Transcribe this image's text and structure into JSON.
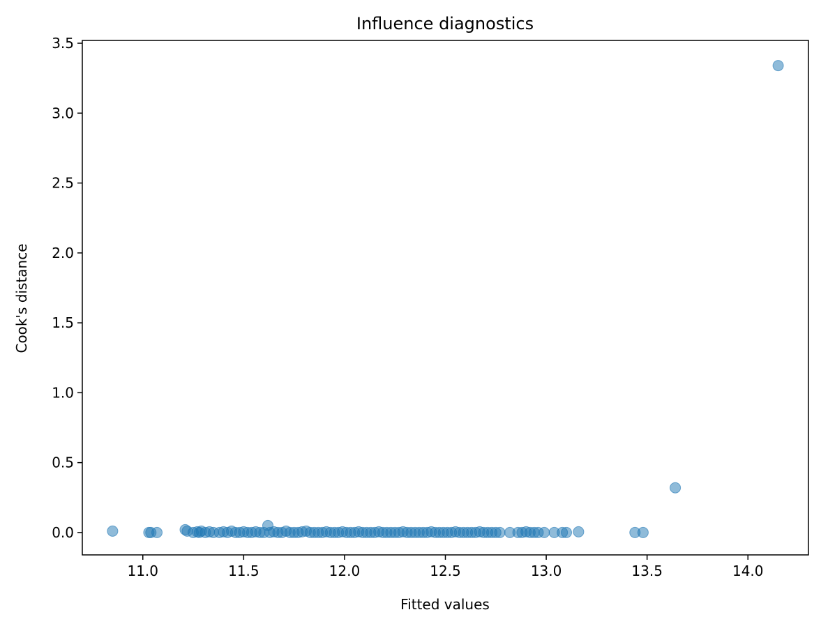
{
  "chart_data": {
    "type": "scatter",
    "title": "Influence diagnostics",
    "xlabel": "Fitted values",
    "ylabel": "Cook's distance",
    "xlim": [
      10.7,
      14.3
    ],
    "ylim": [
      -0.16,
      3.52
    ],
    "xticks": [
      11.0,
      11.5,
      12.0,
      12.5,
      13.0,
      13.5,
      14.0
    ],
    "xtick_labels": [
      "11.0",
      "11.5",
      "12.0",
      "12.5",
      "13.0",
      "13.5",
      "14.0"
    ],
    "yticks": [
      0.0,
      0.5,
      1.0,
      1.5,
      2.0,
      2.5,
      3.0,
      3.5
    ],
    "ytick_labels": [
      "0.0",
      "0.5",
      "1.0",
      "1.5",
      "2.0",
      "2.5",
      "3.0",
      "3.5"
    ],
    "grid": false,
    "marker_color": "#1f77b4",
    "marker_alpha": 0.5,
    "points": [
      [
        10.85,
        0.01
      ],
      [
        11.03,
        0.0
      ],
      [
        11.04,
        0.0
      ],
      [
        11.07,
        0.0
      ],
      [
        11.21,
        0.02
      ],
      [
        11.22,
        0.01
      ],
      [
        11.25,
        0.0
      ],
      [
        11.27,
        0.005
      ],
      [
        11.28,
        0.0
      ],
      [
        11.29,
        0.01
      ],
      [
        11.31,
        0.0
      ],
      [
        11.33,
        0.005
      ],
      [
        11.35,
        0.0
      ],
      [
        11.38,
        0.0
      ],
      [
        11.4,
        0.005
      ],
      [
        11.42,
        0.0
      ],
      [
        11.44,
        0.01
      ],
      [
        11.46,
        0.0
      ],
      [
        11.48,
        0.0
      ],
      [
        11.5,
        0.005
      ],
      [
        11.52,
        0.0
      ],
      [
        11.54,
        0.0
      ],
      [
        11.56,
        0.005
      ],
      [
        11.58,
        0.0
      ],
      [
        11.6,
        0.0
      ],
      [
        11.62,
        0.05
      ],
      [
        11.63,
        0.0
      ],
      [
        11.65,
        0.005
      ],
      [
        11.67,
        0.0
      ],
      [
        11.69,
        0.0
      ],
      [
        11.71,
        0.01
      ],
      [
        11.73,
        0.0
      ],
      [
        11.75,
        0.0
      ],
      [
        11.77,
        0.0
      ],
      [
        11.79,
        0.005
      ],
      [
        11.81,
        0.01
      ],
      [
        11.83,
        0.0
      ],
      [
        11.85,
        0.0
      ],
      [
        11.87,
        0.0
      ],
      [
        11.89,
        0.0
      ],
      [
        11.91,
        0.005
      ],
      [
        11.93,
        0.0
      ],
      [
        11.95,
        0.0
      ],
      [
        11.97,
        0.0
      ],
      [
        11.99,
        0.005
      ],
      [
        12.01,
        0.0
      ],
      [
        12.03,
        0.0
      ],
      [
        12.05,
        0.0
      ],
      [
        12.07,
        0.005
      ],
      [
        12.09,
        0.0
      ],
      [
        12.11,
        0.0
      ],
      [
        12.13,
        0.0
      ],
      [
        12.15,
        0.0
      ],
      [
        12.17,
        0.005
      ],
      [
        12.19,
        0.0
      ],
      [
        12.21,
        0.0
      ],
      [
        12.23,
        0.0
      ],
      [
        12.25,
        0.0
      ],
      [
        12.27,
        0.0
      ],
      [
        12.29,
        0.005
      ],
      [
        12.31,
        0.0
      ],
      [
        12.33,
        0.0
      ],
      [
        12.35,
        0.0
      ],
      [
        12.37,
        0.0
      ],
      [
        12.39,
        0.0
      ],
      [
        12.41,
        0.0
      ],
      [
        12.43,
        0.005
      ],
      [
        12.45,
        0.0
      ],
      [
        12.47,
        0.0
      ],
      [
        12.49,
        0.0
      ],
      [
        12.51,
        0.0
      ],
      [
        12.53,
        0.0
      ],
      [
        12.55,
        0.005
      ],
      [
        12.57,
        0.0
      ],
      [
        12.59,
        0.0
      ],
      [
        12.61,
        0.0
      ],
      [
        12.63,
        0.0
      ],
      [
        12.65,
        0.0
      ],
      [
        12.67,
        0.005
      ],
      [
        12.69,
        0.0
      ],
      [
        12.71,
        0.0
      ],
      [
        12.73,
        0.0
      ],
      [
        12.75,
        0.0
      ],
      [
        12.77,
        0.0
      ],
      [
        12.82,
        0.0
      ],
      [
        12.86,
        0.0
      ],
      [
        12.88,
        0.0
      ],
      [
        12.9,
        0.005
      ],
      [
        12.92,
        0.0
      ],
      [
        12.94,
        0.0
      ],
      [
        12.96,
        0.0
      ],
      [
        12.99,
        0.0
      ],
      [
        13.04,
        0.0
      ],
      [
        13.08,
        0.0
      ],
      [
        13.1,
        0.0
      ],
      [
        13.16,
        0.005
      ],
      [
        13.44,
        0.0
      ],
      [
        13.48,
        0.0
      ],
      [
        13.64,
        0.32
      ],
      [
        14.15,
        3.34
      ]
    ]
  }
}
